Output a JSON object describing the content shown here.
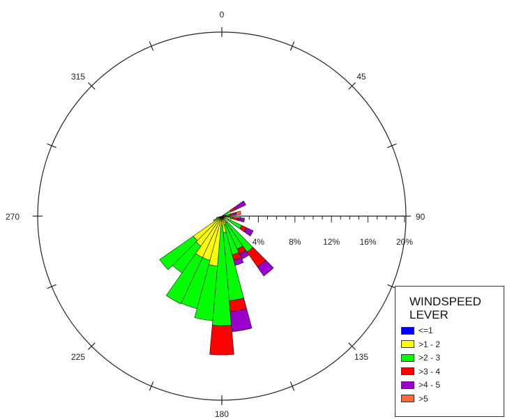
{
  "chart_data": {
    "type": "polar-bar",
    "title": "",
    "direction_labels": [
      "0",
      "45",
      "90",
      "135",
      "180",
      "225",
      "270",
      "315"
    ],
    "radial_labels": [
      "4%",
      "8%",
      "12%",
      "16%",
      "20%"
    ],
    "radial_max": 20,
    "sector_width_deg": 10,
    "bins": [
      {
        "name": "<=1",
        "color": "#0000ff"
      },
      {
        "name": ">1 - 2",
        "color": "#ffff00"
      },
      {
        "name": ">2 - 3",
        "color": "#00ff00"
      },
      {
        "name": ">3 - 4",
        "color": "#ff0000"
      },
      {
        "name": ">4 - 5",
        "color": "#9900cc"
      },
      {
        "name": ">5",
        "color": "#ff6633"
      }
    ],
    "sectors": [
      {
        "direction": 60,
        "values": [
          0,
          0.3,
          0.8,
          0.6,
          1.2,
          0
        ]
      },
      {
        "direction": 80,
        "values": [
          0,
          0.3,
          0.6,
          0.4,
          0.3,
          0.5
        ]
      },
      {
        "direction": 100,
        "values": [
          0,
          0.3,
          0.9,
          0.6,
          0.7,
          0
        ]
      },
      {
        "direction": 120,
        "values": [
          0,
          0.8,
          1.6,
          0.6,
          0.8,
          0
        ]
      },
      {
        "direction": 140,
        "values": [
          0,
          0.8,
          4.0,
          2.0,
          1.2,
          0
        ]
      },
      {
        "direction": 150,
        "values": [
          0,
          0.8,
          3.2,
          0.6,
          0.6,
          0
        ]
      },
      {
        "direction": 160,
        "values": [
          0,
          1.0,
          3.4,
          0.6,
          0.6,
          0
        ]
      },
      {
        "direction": 170,
        "values": [
          0,
          1.8,
          7.5,
          1.2,
          2.2,
          0
        ]
      },
      {
        "direction": 180,
        "values": [
          0,
          1.0,
          11.0,
          3.2,
          0,
          0
        ]
      },
      {
        "direction": 190,
        "values": [
          0,
          5.5,
          6.0,
          0,
          0,
          0
        ]
      },
      {
        "direction": 200,
        "values": [
          0,
          5.0,
          5.5,
          0,
          0,
          0
        ]
      },
      {
        "direction": 210,
        "values": [
          0,
          5.0,
          5.6,
          0,
          0,
          0
        ]
      },
      {
        "direction": 220,
        "values": [
          0,
          4.0,
          3.6,
          0,
          0,
          0
        ]
      },
      {
        "direction": 230,
        "values": [
          0,
          3.8,
          4.5,
          0,
          0,
          0
        ]
      },
      {
        "direction": 240,
        "values": [
          0.1,
          0.5,
          0.4,
          0,
          0,
          0
        ]
      },
      {
        "direction": 250,
        "values": [
          0.1,
          0.3,
          0.2,
          0,
          0,
          0
        ]
      }
    ]
  },
  "legend": {
    "title": "WINDSPEED\nLEVER"
  }
}
